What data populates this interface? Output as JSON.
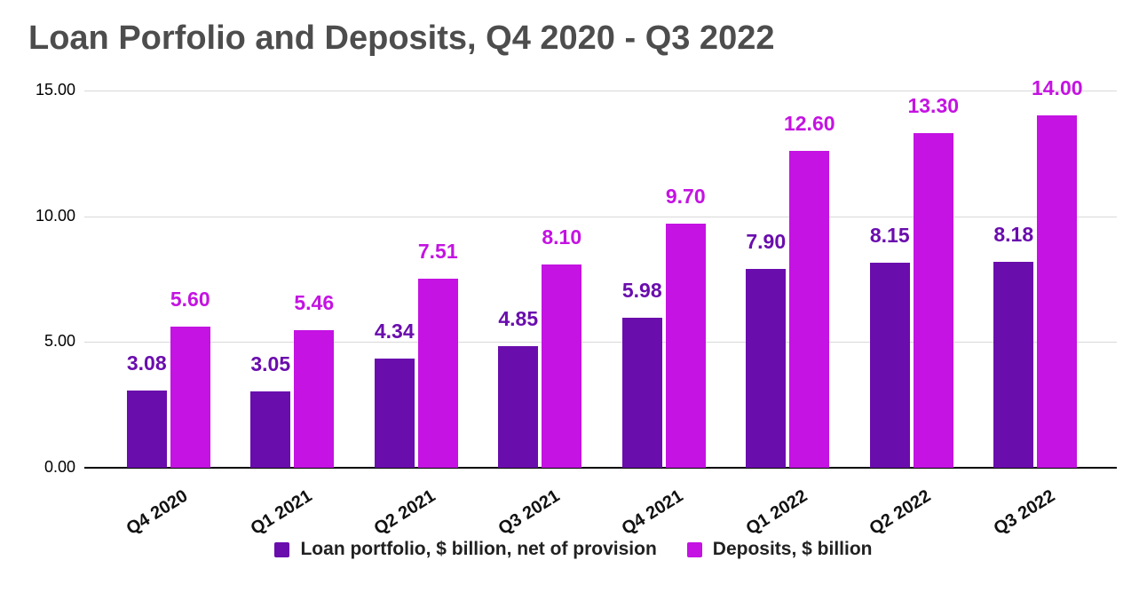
{
  "title": "Loan Porfolio and Deposits, Q4 2020 - Q3 2022",
  "chart_data": {
    "type": "bar",
    "title": "Loan Porfolio and Deposits, Q4 2020 - Q3 2022",
    "categories": [
      "Q4 2020",
      "Q1 2021",
      "Q2 2021",
      "Q3 2021",
      "Q4 2021",
      "Q1 2022",
      "Q2 2022",
      "Q3 2022"
    ],
    "series": [
      {
        "name": "Loan portfolio, $ billion, net of provision",
        "color": "#6a0dad",
        "values": [
          3.08,
          3.05,
          4.34,
          4.85,
          5.98,
          7.9,
          8.15,
          8.18
        ]
      },
      {
        "name": "Deposits, $ billion",
        "color": "#c413e2",
        "values": [
          5.6,
          5.46,
          7.51,
          8.1,
          9.7,
          12.6,
          13.3,
          14.0
        ]
      }
    ],
    "xlabel": "",
    "ylabel": "",
    "ylim": [
      0,
      15
    ],
    "yticks": [
      0,
      5,
      10,
      15
    ],
    "ytick_labels": [
      "0.00",
      "5.00",
      "10.00",
      "15.00"
    ],
    "grid": true,
    "legend_position": "bottom",
    "value_labels": "two-decimal, colored same as series"
  }
}
